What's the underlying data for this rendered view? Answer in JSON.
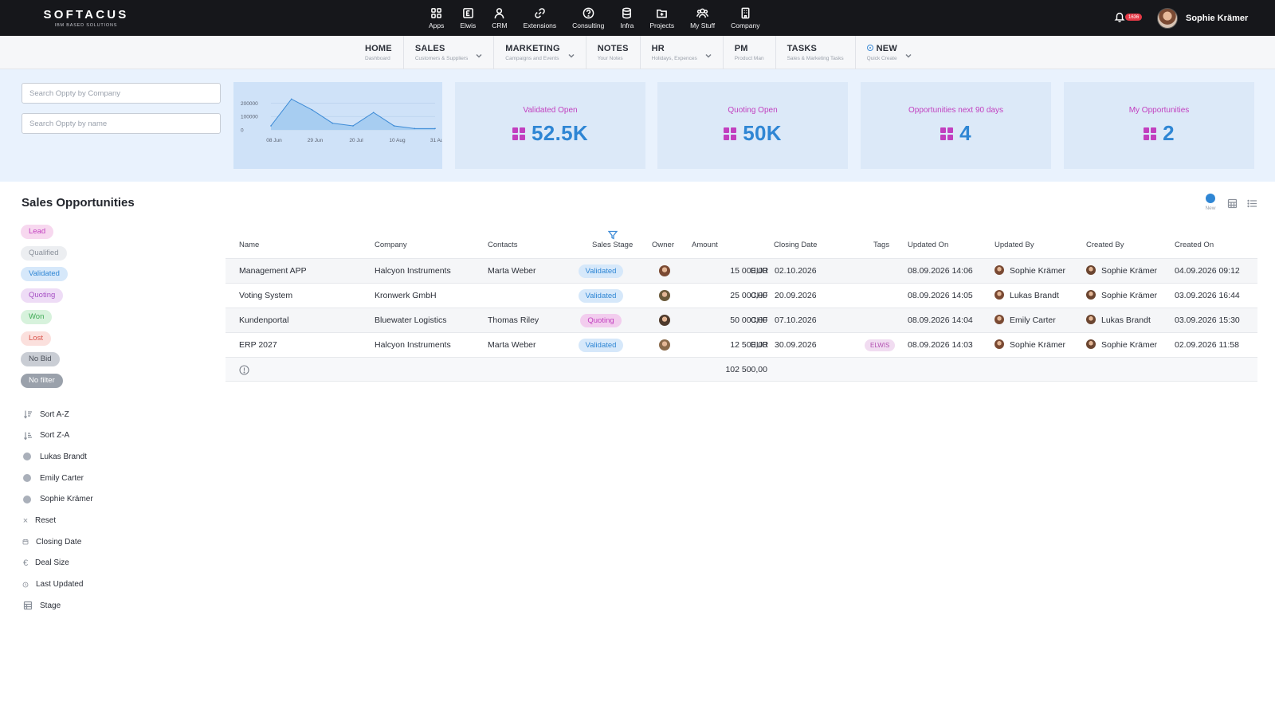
{
  "brand": {
    "name": "SOFTACUS",
    "tagline": "IBM BASED SOLUTIONS"
  },
  "app_nav": [
    {
      "label": "Apps",
      "icon": "apps-grid-icon"
    },
    {
      "label": "Elwis",
      "icon": "elwis-icon"
    },
    {
      "label": "CRM",
      "icon": "person-icon"
    },
    {
      "label": "Extensions",
      "icon": "link-icon"
    },
    {
      "label": "Consulting",
      "icon": "help-circle-icon"
    },
    {
      "label": "Infra",
      "icon": "database-icon"
    },
    {
      "label": "Projects",
      "icon": "folder-icon"
    },
    {
      "label": "My Stuff",
      "icon": "people-icon"
    },
    {
      "label": "Company",
      "icon": "building-icon"
    }
  ],
  "notifications": {
    "count": "1636"
  },
  "user": {
    "name": "Sophie Krämer"
  },
  "module_nav": [
    {
      "title": "HOME",
      "subtitle": "Dashboard"
    },
    {
      "title": "SALES",
      "subtitle": "Customers & Suppliers"
    },
    {
      "title": "MARKETING",
      "subtitle": "Campaigns and Events"
    },
    {
      "title": "NOTES",
      "subtitle": "Your Notes"
    },
    {
      "title": "HR",
      "subtitle": "Holidays, Expences"
    },
    {
      "title": "PM",
      "subtitle": "Product Man"
    },
    {
      "title": "TASKS",
      "subtitle": "Sales & Marketing Tasks"
    },
    {
      "title": "NEW",
      "subtitle": "Quick Create"
    }
  ],
  "search": {
    "company_placeholder": "Search Oppty by Company",
    "name_placeholder": "Search Oppty by name"
  },
  "colors": {
    "accent_blue": "#2f86d4",
    "accent_purple": "#c23fbf",
    "topbar": "#16171b",
    "strip_bg": "#e9f2fd"
  },
  "chart_data": {
    "type": "area",
    "x": [
      "08 Jun",
      "",
      "29 Jun",
      "",
      "20 Jul",
      "",
      "10 Aug",
      "",
      "31 Aug"
    ],
    "values": [
      30000,
      230000,
      150000,
      50000,
      30000,
      130000,
      30000,
      10000,
      10000
    ],
    "y_ticks": [
      "200000",
      "100000",
      "0"
    ],
    "x_ticks": [
      "08 Jun",
      "29 Jun",
      "20 Jul",
      "10 Aug",
      "31 Aug"
    ],
    "ylim": [
      0,
      250000
    ],
    "grid": true
  },
  "kpis": [
    {
      "title": "Validated Open",
      "value": "52.5K"
    },
    {
      "title": "Quoting Open",
      "value": "50K"
    },
    {
      "title": "Opportunities next 90 days",
      "value": "4"
    },
    {
      "title": "My Opportunities",
      "value": "2"
    }
  ],
  "section": {
    "title": "Sales Opportunities",
    "new_label": "New"
  },
  "stage_filters": [
    {
      "label": "Lead",
      "bg": "#f7d8ef",
      "fg": "#c23fbf"
    },
    {
      "label": "Qualified",
      "bg": "#eceef1",
      "fg": "#8a909a"
    },
    {
      "label": "Validated",
      "bg": "#d6e8fa",
      "fg": "#2f86d4"
    },
    {
      "label": "Quoting",
      "bg": "#eedcf6",
      "fg": "#a64fc4"
    },
    {
      "label": "Won",
      "bg": "#d7f2dc",
      "fg": "#3faa55"
    },
    {
      "label": "Lost",
      "bg": "#fbe0dd",
      "fg": "#d9534a"
    },
    {
      "label": "No Bid",
      "bg": "#c9cdd4",
      "fg": "#4a4f58"
    },
    {
      "label": "No filter",
      "bg": "#9aa1ab",
      "fg": "#ffffff"
    }
  ],
  "side_options": [
    {
      "label": "Sort A-Z",
      "icon": "sort-az-icon",
      "kind": "icon"
    },
    {
      "label": "Sort Z-A",
      "icon": "sort-za-icon",
      "kind": "icon"
    },
    {
      "label": "Lukas Brandt",
      "icon": "user-dot-icon",
      "kind": "dot"
    },
    {
      "label": "Emily Carter",
      "icon": "user-dot-icon",
      "kind": "dot"
    },
    {
      "label": "Sophie Krämer",
      "icon": "user-dot-icon",
      "kind": "dot"
    },
    {
      "label": "Reset",
      "icon": "close-icon",
      "kind": "x"
    },
    {
      "label": "Closing Date",
      "icon": "calendar-icon",
      "kind": "icon"
    },
    {
      "label": "Deal Size",
      "icon": "euro-icon",
      "kind": "euro"
    },
    {
      "label": "Last Updated",
      "icon": "clock-icon",
      "kind": "icon"
    },
    {
      "label": "Stage",
      "icon": "table-icon",
      "kind": "icon"
    }
  ],
  "table": {
    "columns": [
      "Name",
      "Company",
      "Contacts",
      "Sales Stage",
      "Owner",
      "Amount",
      "Closing Date",
      "Tags",
      "Updated On",
      "Updated By",
      "Created By",
      "Created On"
    ],
    "rows": [
      {
        "name": "Management APP",
        "company": "Halcyon Instruments",
        "contact": "Marta Weber",
        "stage": "Validated",
        "amount": "15 000,00",
        "currency": "EUR",
        "closing": "02.10.2026",
        "tag": "",
        "updated_on": "08.09.2026 14:06",
        "updated_by": "Sophie Krämer",
        "created_by": "Sophie Krämer",
        "created_on": "04.09.2026 09:12"
      },
      {
        "name": "Voting System",
        "company": "Kronwerk GmbH",
        "contact": "",
        "stage": "Validated",
        "amount": "25 000,00",
        "currency": "CHF",
        "closing": "20.09.2026",
        "tag": "",
        "updated_on": "08.09.2026 14:05",
        "updated_by": "Lukas Brandt",
        "created_by": "Sophie Krämer",
        "created_on": "03.09.2026 16:44"
      },
      {
        "name": "Kundenportal",
        "company": "Bluewater Logistics",
        "contact": "Thomas Riley",
        "stage": "Quoting",
        "amount": "50 000,00",
        "currency": "CHF",
        "closing": "07.10.2026",
        "tag": "",
        "updated_on": "08.09.2026 14:04",
        "updated_by": "Emily Carter",
        "created_by": "Lukas Brandt",
        "created_on": "03.09.2026 15:30"
      },
      {
        "name": "ERP 2027",
        "company": "Halcyon Instruments",
        "contact": "Marta Weber",
        "stage": "Validated",
        "amount": "12 500,00",
        "currency": "EUR",
        "closing": "30.09.2026",
        "tag": "ELWIS",
        "updated_on": "08.09.2026 14:03",
        "updated_by": "Sophie Krämer",
        "created_by": "Sophie Krämer",
        "created_on": "02.09.2026 11:58"
      }
    ],
    "total_amount": "102 500,00"
  }
}
